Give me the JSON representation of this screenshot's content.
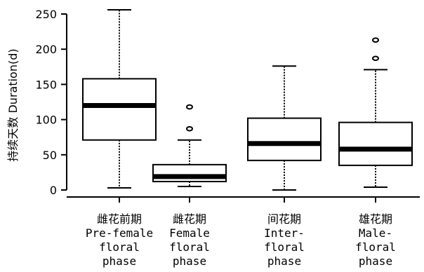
{
  "chart_data": {
    "type": "boxplot",
    "ylabel": "持续天数 Duration(d)",
    "ylim": [
      0,
      260
    ],
    "yticks": [
      0,
      50,
      100,
      150,
      200,
      250
    ],
    "grid": false,
    "categories": [
      {
        "zh": "雌花前期",
        "en": [
          "Pre-female",
          "floral",
          "phase"
        ]
      },
      {
        "zh": "雌花期",
        "en": [
          "Female",
          "floral",
          "phase"
        ]
      },
      {
        "zh": "间花期",
        "en": [
          "Inter-",
          "floral",
          "phase"
        ]
      },
      {
        "zh": "雄花期",
        "en": [
          "Male-",
          "floral",
          "phase"
        ]
      }
    ],
    "boxes": [
      {
        "whisker_low": 3,
        "q1": 71,
        "median": 120,
        "q3": 158,
        "whisker_high": 256,
        "outliers": []
      },
      {
        "whisker_low": 5,
        "q1": 12,
        "median": 19,
        "q3": 36,
        "whisker_high": 71,
        "outliers": [
          87,
          118
        ]
      },
      {
        "whisker_low": 0,
        "q1": 42,
        "median": 66,
        "q3": 102,
        "whisker_high": 176,
        "outliers": []
      },
      {
        "whisker_low": 4,
        "q1": 35,
        "median": 58,
        "q3": 96,
        "whisker_high": 171,
        "outliers": [
          187,
          213
        ]
      }
    ]
  }
}
